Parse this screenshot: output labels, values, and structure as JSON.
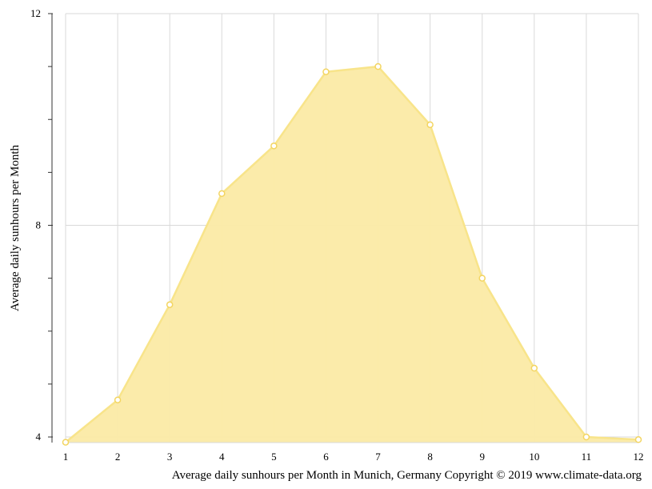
{
  "chart_data": {
    "type": "area",
    "x": [
      1,
      2,
      3,
      4,
      5,
      6,
      7,
      8,
      9,
      10,
      11,
      12
    ],
    "series": [
      {
        "values": [
          3.9,
          4.7,
          6.5,
          8.6,
          9.5,
          10.9,
          11.0,
          9.9,
          7.0,
          5.3,
          4.0,
          3.95
        ],
        "color": "#fbe995"
      }
    ],
    "xlabel": "Average daily sunhours per Month in Munich, Germany Copyright © 2019 www.climate-data.org",
    "ylabel": "Average daily sunhours per Month",
    "xlim": [
      1,
      12
    ],
    "ylim": [
      4,
      12
    ],
    "y_ticks": [
      4,
      8,
      12
    ],
    "grid": true,
    "legend": "none"
  },
  "colors": {
    "area_fill": "#fbeaa5",
    "line": "#f8e48a",
    "marker_stroke": "#f3d561",
    "grid": "#d9d9d9",
    "axis": "#333333"
  }
}
